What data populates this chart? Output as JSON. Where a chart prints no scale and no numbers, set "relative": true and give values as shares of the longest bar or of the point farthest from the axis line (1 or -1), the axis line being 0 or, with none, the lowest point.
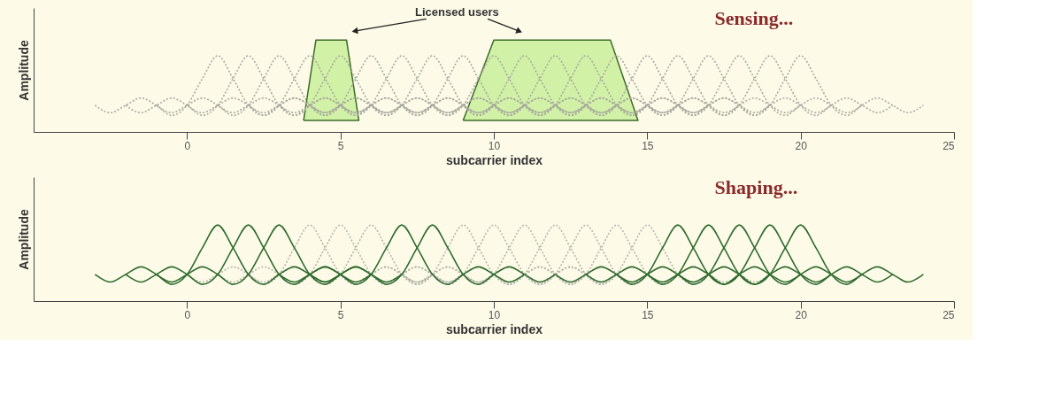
{
  "chart_data": [
    {
      "type": "line",
      "title": "Sensing...",
      "xlabel": "subcarrier index",
      "ylabel": "Amplitude",
      "xlim": [
        -5,
        25
      ],
      "xticks": [
        0,
        5,
        10,
        15,
        20,
        25
      ],
      "relative": true,
      "tick_labels": "x",
      "annotations": [
        "Licensed users"
      ],
      "series": [
        {
          "type": "area",
          "color": "#c9ee9a",
          "x": [
            3.8,
            4.2,
            5.2,
            5.6,
            3.8
          ],
          "values": [
            0.125,
            1,
            1,
            0.125,
            0.125
          ]
        },
        {
          "type": "area",
          "color": "#c9ee9a",
          "x": [
            9.0,
            10.0,
            13.8,
            14.7,
            9.0
          ],
          "values": [
            0.125,
            1,
            1,
            0.125,
            0.125
          ]
        },
        {
          "color": "#a8a89e",
          "line_style": "dotted",
          "x": [
            -3,
            -2.5,
            -2,
            -1.5,
            -1,
            -0.5,
            0,
            0.5,
            1,
            1.5,
            2,
            2.5,
            3,
            3.5,
            4,
            4.5,
            5
          ],
          "values": [
            0.29,
            0.21,
            0.29,
            0.37,
            0.29,
            0.18,
            0.29,
            0.58,
            0.83,
            0.58,
            0.29,
            0.18,
            0.29,
            0.37,
            0.29,
            0.21,
            0.29
          ]
        },
        {
          "color": "#a8a89e",
          "line_style": "dotted",
          "x": [
            -2,
            -1.5,
            -1,
            -0.5,
            0,
            0.5,
            1,
            1.5,
            2,
            2.5,
            3,
            3.5,
            4,
            4.5,
            5,
            5.5,
            6
          ],
          "values": [
            0.29,
            0.21,
            0.29,
            0.37,
            0.29,
            0.18,
            0.29,
            0.58,
            0.83,
            0.58,
            0.29,
            0.18,
            0.29,
            0.37,
            0.29,
            0.21,
            0.29
          ]
        },
        {
          "color": "#a8a89e",
          "line_style": "dotted",
          "x": [
            -1,
            -0.5,
            0,
            0.5,
            1,
            1.5,
            2,
            2.5,
            3,
            3.5,
            4,
            4.5,
            5,
            5.5,
            6,
            6.5,
            7
          ],
          "values": [
            0.29,
            0.21,
            0.29,
            0.37,
            0.29,
            0.18,
            0.29,
            0.58,
            0.83,
            0.58,
            0.29,
            0.18,
            0.29,
            0.37,
            0.29,
            0.21,
            0.29
          ]
        },
        {
          "color": "#a8a89e",
          "line_style": "dotted",
          "x": [
            0,
            0.5,
            1,
            1.5,
            2,
            2.5,
            3,
            3.5,
            4,
            4.5,
            5,
            5.5,
            6,
            6.5,
            7,
            7.5,
            8
          ],
          "values": [
            0.29,
            0.21,
            0.29,
            0.37,
            0.29,
            0.18,
            0.29,
            0.58,
            0.83,
            0.58,
            0.29,
            0.18,
            0.29,
            0.37,
            0.29,
            0.21,
            0.29
          ]
        },
        {
          "color": "#a8a89e",
          "line_style": "dotted",
          "x": [
            1,
            1.5,
            2,
            2.5,
            3,
            3.5,
            4,
            4.5,
            5,
            5.5,
            6,
            6.5,
            7,
            7.5,
            8,
            8.5,
            9
          ],
          "values": [
            0.29,
            0.21,
            0.29,
            0.37,
            0.29,
            0.18,
            0.29,
            0.58,
            0.83,
            0.58,
            0.29,
            0.18,
            0.29,
            0.37,
            0.29,
            0.21,
            0.29
          ]
        },
        {
          "color": "#a8a89e",
          "line_style": "dotted",
          "x": [
            2,
            2.5,
            3,
            3.5,
            4,
            4.5,
            5,
            5.5,
            6,
            6.5,
            7,
            7.5,
            8,
            8.5,
            9,
            9.5,
            10
          ],
          "values": [
            0.29,
            0.21,
            0.29,
            0.37,
            0.29,
            0.18,
            0.29,
            0.58,
            0.83,
            0.58,
            0.29,
            0.18,
            0.29,
            0.37,
            0.29,
            0.21,
            0.29
          ]
        },
        {
          "color": "#a8a89e",
          "line_style": "dotted",
          "x": [
            3,
            3.5,
            4,
            4.5,
            5,
            5.5,
            6,
            6.5,
            7,
            7.5,
            8,
            8.5,
            9,
            9.5,
            10,
            10.5,
            11
          ],
          "values": [
            0.29,
            0.21,
            0.29,
            0.37,
            0.29,
            0.18,
            0.29,
            0.58,
            0.83,
            0.58,
            0.29,
            0.18,
            0.29,
            0.37,
            0.29,
            0.21,
            0.29
          ]
        },
        {
          "color": "#a8a89e",
          "line_style": "dotted",
          "x": [
            4,
            4.5,
            5,
            5.5,
            6,
            6.5,
            7,
            7.5,
            8,
            8.5,
            9,
            9.5,
            10,
            10.5,
            11,
            11.5,
            12
          ],
          "values": [
            0.29,
            0.21,
            0.29,
            0.37,
            0.29,
            0.18,
            0.29,
            0.58,
            0.83,
            0.58,
            0.29,
            0.18,
            0.29,
            0.37,
            0.29,
            0.21,
            0.29
          ]
        },
        {
          "color": "#a8a89e",
          "line_style": "dotted",
          "x": [
            5,
            5.5,
            6,
            6.5,
            7,
            7.5,
            8,
            8.5,
            9,
            9.5,
            10,
            10.5,
            11,
            11.5,
            12,
            12.5,
            13
          ],
          "values": [
            0.29,
            0.21,
            0.29,
            0.37,
            0.29,
            0.18,
            0.29,
            0.58,
            0.83,
            0.58,
            0.29,
            0.18,
            0.29,
            0.37,
            0.29,
            0.21,
            0.29
          ]
        },
        {
          "color": "#a8a89e",
          "line_style": "dotted",
          "x": [
            6,
            6.5,
            7,
            7.5,
            8,
            8.5,
            9,
            9.5,
            10,
            10.5,
            11,
            11.5,
            12,
            12.5,
            13,
            13.5,
            14
          ],
          "values": [
            0.29,
            0.21,
            0.29,
            0.37,
            0.29,
            0.18,
            0.29,
            0.58,
            0.83,
            0.58,
            0.29,
            0.18,
            0.29,
            0.37,
            0.29,
            0.21,
            0.29
          ]
        },
        {
          "color": "#a8a89e",
          "line_style": "dotted",
          "x": [
            7,
            7.5,
            8,
            8.5,
            9,
            9.5,
            10,
            10.5,
            11,
            11.5,
            12,
            12.5,
            13,
            13.5,
            14,
            14.5,
            15
          ],
          "values": [
            0.29,
            0.21,
            0.29,
            0.37,
            0.29,
            0.18,
            0.29,
            0.58,
            0.83,
            0.58,
            0.29,
            0.18,
            0.29,
            0.37,
            0.29,
            0.21,
            0.29
          ]
        },
        {
          "color": "#a8a89e",
          "line_style": "dotted",
          "x": [
            8,
            8.5,
            9,
            9.5,
            10,
            10.5,
            11,
            11.5,
            12,
            12.5,
            13,
            13.5,
            14,
            14.5,
            15,
            15.5,
            16
          ],
          "values": [
            0.29,
            0.21,
            0.29,
            0.37,
            0.29,
            0.18,
            0.29,
            0.58,
            0.83,
            0.58,
            0.29,
            0.18,
            0.29,
            0.37,
            0.29,
            0.21,
            0.29
          ]
        },
        {
          "color": "#a8a89e",
          "line_style": "dotted",
          "x": [
            9,
            9.5,
            10,
            10.5,
            11,
            11.5,
            12,
            12.5,
            13,
            13.5,
            14,
            14.5,
            15,
            15.5,
            16,
            16.5,
            17
          ],
          "values": [
            0.29,
            0.21,
            0.29,
            0.37,
            0.29,
            0.18,
            0.29,
            0.58,
            0.83,
            0.58,
            0.29,
            0.18,
            0.29,
            0.37,
            0.29,
            0.21,
            0.29
          ]
        },
        {
          "color": "#a8a89e",
          "line_style": "dotted",
          "x": [
            10,
            10.5,
            11,
            11.5,
            12,
            12.5,
            13,
            13.5,
            14,
            14.5,
            15,
            15.5,
            16,
            16.5,
            17,
            17.5,
            18
          ],
          "values": [
            0.29,
            0.21,
            0.29,
            0.37,
            0.29,
            0.18,
            0.29,
            0.58,
            0.83,
            0.58,
            0.29,
            0.18,
            0.29,
            0.37,
            0.29,
            0.21,
            0.29
          ]
        },
        {
          "color": "#a8a89e",
          "line_style": "dotted",
          "x": [
            11,
            11.5,
            12,
            12.5,
            13,
            13.5,
            14,
            14.5,
            15,
            15.5,
            16,
            16.5,
            17,
            17.5,
            18,
            18.5,
            19
          ],
          "values": [
            0.29,
            0.21,
            0.29,
            0.37,
            0.29,
            0.18,
            0.29,
            0.58,
            0.83,
            0.58,
            0.29,
            0.18,
            0.29,
            0.37,
            0.29,
            0.21,
            0.29
          ]
        },
        {
          "color": "#a8a89e",
          "line_style": "dotted",
          "x": [
            12,
            12.5,
            13,
            13.5,
            14,
            14.5,
            15,
            15.5,
            16,
            16.5,
            17,
            17.5,
            18,
            18.5,
            19,
            19.5,
            20
          ],
          "values": [
            0.29,
            0.21,
            0.29,
            0.37,
            0.29,
            0.18,
            0.29,
            0.58,
            0.83,
            0.58,
            0.29,
            0.18,
            0.29,
            0.37,
            0.29,
            0.21,
            0.29
          ]
        },
        {
          "color": "#a8a89e",
          "line_style": "dotted",
          "x": [
            13,
            13.5,
            14,
            14.5,
            15,
            15.5,
            16,
            16.5,
            17,
            17.5,
            18,
            18.5,
            19,
            19.5,
            20,
            20.5,
            21
          ],
          "values": [
            0.29,
            0.21,
            0.29,
            0.37,
            0.29,
            0.18,
            0.29,
            0.58,
            0.83,
            0.58,
            0.29,
            0.18,
            0.29,
            0.37,
            0.29,
            0.21,
            0.29
          ]
        },
        {
          "color": "#a8a89e",
          "line_style": "dotted",
          "x": [
            14,
            14.5,
            15,
            15.5,
            16,
            16.5,
            17,
            17.5,
            18,
            18.5,
            19,
            19.5,
            20,
            20.5,
            21,
            21.5,
            22
          ],
          "values": [
            0.29,
            0.21,
            0.29,
            0.37,
            0.29,
            0.18,
            0.29,
            0.58,
            0.83,
            0.58,
            0.29,
            0.18,
            0.29,
            0.37,
            0.29,
            0.21,
            0.29
          ]
        },
        {
          "color": "#a8a89e",
          "line_style": "dotted",
          "x": [
            15,
            15.5,
            16,
            16.5,
            17,
            17.5,
            18,
            18.5,
            19,
            19.5,
            20,
            20.5,
            21,
            21.5,
            22,
            22.5,
            23
          ],
          "values": [
            0.29,
            0.21,
            0.29,
            0.37,
            0.29,
            0.18,
            0.29,
            0.58,
            0.83,
            0.58,
            0.29,
            0.18,
            0.29,
            0.37,
            0.29,
            0.21,
            0.29
          ]
        },
        {
          "color": "#a8a89e",
          "line_style": "dotted",
          "x": [
            16,
            16.5,
            17,
            17.5,
            18,
            18.5,
            19,
            19.5,
            20,
            20.5,
            21,
            21.5,
            22,
            22.5,
            23,
            23.5,
            24
          ],
          "values": [
            0.29,
            0.21,
            0.29,
            0.37,
            0.29,
            0.18,
            0.29,
            0.58,
            0.83,
            0.58,
            0.29,
            0.18,
            0.29,
            0.37,
            0.29,
            0.21,
            0.29
          ]
        }
      ]
    },
    {
      "type": "line",
      "title": "Shaping...",
      "xlabel": "subcarrier index",
      "ylabel": "Amplitude",
      "xlim": [
        -5,
        25
      ],
      "xticks": [
        0,
        5,
        10,
        15,
        20,
        25
      ],
      "relative": true,
      "tick_labels": "x",
      "series": [
        {
          "color": "#b3b3a8",
          "line_style": "dotted",
          "x": [
            0,
            0.5,
            1,
            1.5,
            2,
            2.5,
            3,
            3.5,
            4,
            4.5,
            5,
            5.5,
            6,
            6.5,
            7,
            7.5,
            8
          ],
          "values": [
            0.35,
            0.25,
            0.35,
            0.45,
            0.35,
            0.22,
            0.35,
            0.7,
            1,
            0.7,
            0.35,
            0.22,
            0.35,
            0.45,
            0.35,
            0.25,
            0.35
          ]
        },
        {
          "color": "#b3b3a8",
          "line_style": "dotted",
          "x": [
            1,
            1.5,
            2,
            2.5,
            3,
            3.5,
            4,
            4.5,
            5,
            5.5,
            6,
            6.5,
            7,
            7.5,
            8,
            8.5,
            9
          ],
          "values": [
            0.35,
            0.25,
            0.35,
            0.45,
            0.35,
            0.22,
            0.35,
            0.7,
            1,
            0.7,
            0.35,
            0.22,
            0.35,
            0.45,
            0.35,
            0.25,
            0.35
          ]
        },
        {
          "color": "#b3b3a8",
          "line_style": "dotted",
          "x": [
            2,
            2.5,
            3,
            3.5,
            4,
            4.5,
            5,
            5.5,
            6,
            6.5,
            7,
            7.5,
            8,
            8.5,
            9,
            9.5,
            10
          ],
          "values": [
            0.35,
            0.25,
            0.35,
            0.45,
            0.35,
            0.22,
            0.35,
            0.7,
            1,
            0.7,
            0.35,
            0.22,
            0.35,
            0.45,
            0.35,
            0.25,
            0.35
          ]
        },
        {
          "color": "#b3b3a8",
          "line_style": "dotted",
          "x": [
            5,
            5.5,
            6,
            6.5,
            7,
            7.5,
            8,
            8.5,
            9,
            9.5,
            10,
            10.5,
            11,
            11.5,
            12,
            12.5,
            13
          ],
          "values": [
            0.35,
            0.25,
            0.35,
            0.45,
            0.35,
            0.22,
            0.35,
            0.7,
            1,
            0.7,
            0.35,
            0.22,
            0.35,
            0.45,
            0.35,
            0.25,
            0.35
          ]
        },
        {
          "color": "#b3b3a8",
          "line_style": "dotted",
          "x": [
            6,
            6.5,
            7,
            7.5,
            8,
            8.5,
            9,
            9.5,
            10,
            10.5,
            11,
            11.5,
            12,
            12.5,
            13,
            13.5,
            14
          ],
          "values": [
            0.35,
            0.25,
            0.35,
            0.45,
            0.35,
            0.22,
            0.35,
            0.7,
            1,
            0.7,
            0.35,
            0.22,
            0.35,
            0.45,
            0.35,
            0.25,
            0.35
          ]
        },
        {
          "color": "#b3b3a8",
          "line_style": "dotted",
          "x": [
            7,
            7.5,
            8,
            8.5,
            9,
            9.5,
            10,
            10.5,
            11,
            11.5,
            12,
            12.5,
            13,
            13.5,
            14,
            14.5,
            15
          ],
          "values": [
            0.35,
            0.25,
            0.35,
            0.45,
            0.35,
            0.22,
            0.35,
            0.7,
            1,
            0.7,
            0.35,
            0.22,
            0.35,
            0.45,
            0.35,
            0.25,
            0.35
          ]
        },
        {
          "color": "#b3b3a8",
          "line_style": "dotted",
          "x": [
            8,
            8.5,
            9,
            9.5,
            10,
            10.5,
            11,
            11.5,
            12,
            12.5,
            13,
            13.5,
            14,
            14.5,
            15,
            15.5,
            16
          ],
          "values": [
            0.35,
            0.25,
            0.35,
            0.45,
            0.35,
            0.22,
            0.35,
            0.7,
            1,
            0.7,
            0.35,
            0.22,
            0.35,
            0.45,
            0.35,
            0.25,
            0.35
          ]
        },
        {
          "color": "#b3b3a8",
          "line_style": "dotted",
          "x": [
            9,
            9.5,
            10,
            10.5,
            11,
            11.5,
            12,
            12.5,
            13,
            13.5,
            14,
            14.5,
            15,
            15.5,
            16,
            16.5,
            17
          ],
          "values": [
            0.35,
            0.25,
            0.35,
            0.45,
            0.35,
            0.22,
            0.35,
            0.7,
            1,
            0.7,
            0.35,
            0.22,
            0.35,
            0.45,
            0.35,
            0.25,
            0.35
          ]
        },
        {
          "color": "#b3b3a8",
          "line_style": "dotted",
          "x": [
            10,
            10.5,
            11,
            11.5,
            12,
            12.5,
            13,
            13.5,
            14,
            14.5,
            15,
            15.5,
            16,
            16.5,
            17,
            17.5,
            18
          ],
          "values": [
            0.35,
            0.25,
            0.35,
            0.45,
            0.35,
            0.22,
            0.35,
            0.7,
            1,
            0.7,
            0.35,
            0.22,
            0.35,
            0.45,
            0.35,
            0.25,
            0.35
          ]
        },
        {
          "color": "#b3b3a8",
          "line_style": "dotted",
          "x": [
            11,
            11.5,
            12,
            12.5,
            13,
            13.5,
            14,
            14.5,
            15,
            15.5,
            16,
            16.5,
            17,
            17.5,
            18,
            18.5,
            19
          ],
          "values": [
            0.35,
            0.25,
            0.35,
            0.45,
            0.35,
            0.22,
            0.35,
            0.7,
            1,
            0.7,
            0.35,
            0.22,
            0.35,
            0.45,
            0.35,
            0.25,
            0.35
          ]
        },
        {
          "color": "#2f6b2f",
          "line_style": "solid",
          "x": [
            -3,
            -2.5,
            -2,
            -1.5,
            -1,
            -0.5,
            0,
            0.5,
            1,
            1.5,
            2,
            2.5,
            3,
            3.5,
            4,
            4.5,
            5
          ],
          "values": [
            0.35,
            0.25,
            0.35,
            0.45,
            0.35,
            0.22,
            0.35,
            0.7,
            1,
            0.7,
            0.35,
            0.22,
            0.35,
            0.45,
            0.35,
            0.25,
            0.35
          ]
        },
        {
          "color": "#2f6b2f",
          "line_style": "solid",
          "x": [
            -2,
            -1.5,
            -1,
            -0.5,
            0,
            0.5,
            1,
            1.5,
            2,
            2.5,
            3,
            3.5,
            4,
            4.5,
            5,
            5.5,
            6
          ],
          "values": [
            0.35,
            0.25,
            0.35,
            0.45,
            0.35,
            0.22,
            0.35,
            0.7,
            1,
            0.7,
            0.35,
            0.22,
            0.35,
            0.45,
            0.35,
            0.25,
            0.35
          ]
        },
        {
          "color": "#2f6b2f",
          "line_style": "solid",
          "x": [
            -1,
            -0.5,
            0,
            0.5,
            1,
            1.5,
            2,
            2.5,
            3,
            3.5,
            4,
            4.5,
            5,
            5.5,
            6,
            6.5,
            7
          ],
          "values": [
            0.35,
            0.25,
            0.35,
            0.45,
            0.35,
            0.22,
            0.35,
            0.7,
            1,
            0.7,
            0.35,
            0.22,
            0.35,
            0.45,
            0.35,
            0.25,
            0.35
          ]
        },
        {
          "color": "#2f6b2f",
          "line_style": "solid",
          "x": [
            3,
            3.5,
            4,
            4.5,
            5,
            5.5,
            6,
            6.5,
            7,
            7.5,
            8,
            8.5,
            9,
            9.5,
            10,
            10.5,
            11
          ],
          "values": [
            0.35,
            0.25,
            0.35,
            0.45,
            0.35,
            0.22,
            0.35,
            0.7,
            1,
            0.7,
            0.35,
            0.22,
            0.35,
            0.45,
            0.35,
            0.25,
            0.35
          ]
        },
        {
          "color": "#2f6b2f",
          "line_style": "solid",
          "x": [
            4,
            4.5,
            5,
            5.5,
            6,
            6.5,
            7,
            7.5,
            8,
            8.5,
            9,
            9.5,
            10,
            10.5,
            11,
            11.5,
            12
          ],
          "values": [
            0.35,
            0.25,
            0.35,
            0.45,
            0.35,
            0.22,
            0.35,
            0.7,
            1,
            0.7,
            0.35,
            0.22,
            0.35,
            0.45,
            0.35,
            0.25,
            0.35
          ]
        },
        {
          "color": "#2f6b2f",
          "line_style": "solid",
          "x": [
            12,
            12.5,
            13,
            13.5,
            14,
            14.5,
            15,
            15.5,
            16,
            16.5,
            17,
            17.5,
            18,
            18.5,
            19,
            19.5,
            20
          ],
          "values": [
            0.35,
            0.25,
            0.35,
            0.45,
            0.35,
            0.22,
            0.35,
            0.7,
            1,
            0.7,
            0.35,
            0.22,
            0.35,
            0.45,
            0.35,
            0.25,
            0.35
          ]
        },
        {
          "color": "#2f6b2f",
          "line_style": "solid",
          "x": [
            13,
            13.5,
            14,
            14.5,
            15,
            15.5,
            16,
            16.5,
            17,
            17.5,
            18,
            18.5,
            19,
            19.5,
            20,
            20.5,
            21
          ],
          "values": [
            0.35,
            0.25,
            0.35,
            0.45,
            0.35,
            0.22,
            0.35,
            0.7,
            1,
            0.7,
            0.35,
            0.22,
            0.35,
            0.45,
            0.35,
            0.25,
            0.35
          ]
        },
        {
          "color": "#2f6b2f",
          "line_style": "solid",
          "x": [
            14,
            14.5,
            15,
            15.5,
            16,
            16.5,
            17,
            17.5,
            18,
            18.5,
            19,
            19.5,
            20,
            20.5,
            21,
            21.5,
            22
          ],
          "values": [
            0.35,
            0.25,
            0.35,
            0.45,
            0.35,
            0.22,
            0.35,
            0.7,
            1,
            0.7,
            0.35,
            0.22,
            0.35,
            0.45,
            0.35,
            0.25,
            0.35
          ]
        },
        {
          "color": "#2f6b2f",
          "line_style": "solid",
          "x": [
            15,
            15.5,
            16,
            16.5,
            17,
            17.5,
            18,
            18.5,
            19,
            19.5,
            20,
            20.5,
            21,
            21.5,
            22,
            22.5,
            23
          ],
          "values": [
            0.35,
            0.25,
            0.35,
            0.45,
            0.35,
            0.22,
            0.35,
            0.7,
            1,
            0.7,
            0.35,
            0.22,
            0.35,
            0.45,
            0.35,
            0.25,
            0.35
          ]
        },
        {
          "color": "#2f6b2f",
          "line_style": "solid",
          "x": [
            16,
            16.5,
            17,
            17.5,
            18,
            18.5,
            19,
            19.5,
            20,
            20.5,
            21,
            21.5,
            22,
            22.5,
            23,
            23.5,
            24
          ],
          "values": [
            0.35,
            0.25,
            0.35,
            0.45,
            0.35,
            0.22,
            0.35,
            0.7,
            1,
            0.7,
            0.35,
            0.22,
            0.35,
            0.45,
            0.35,
            0.25,
            0.35
          ]
        }
      ]
    }
  ]
}
